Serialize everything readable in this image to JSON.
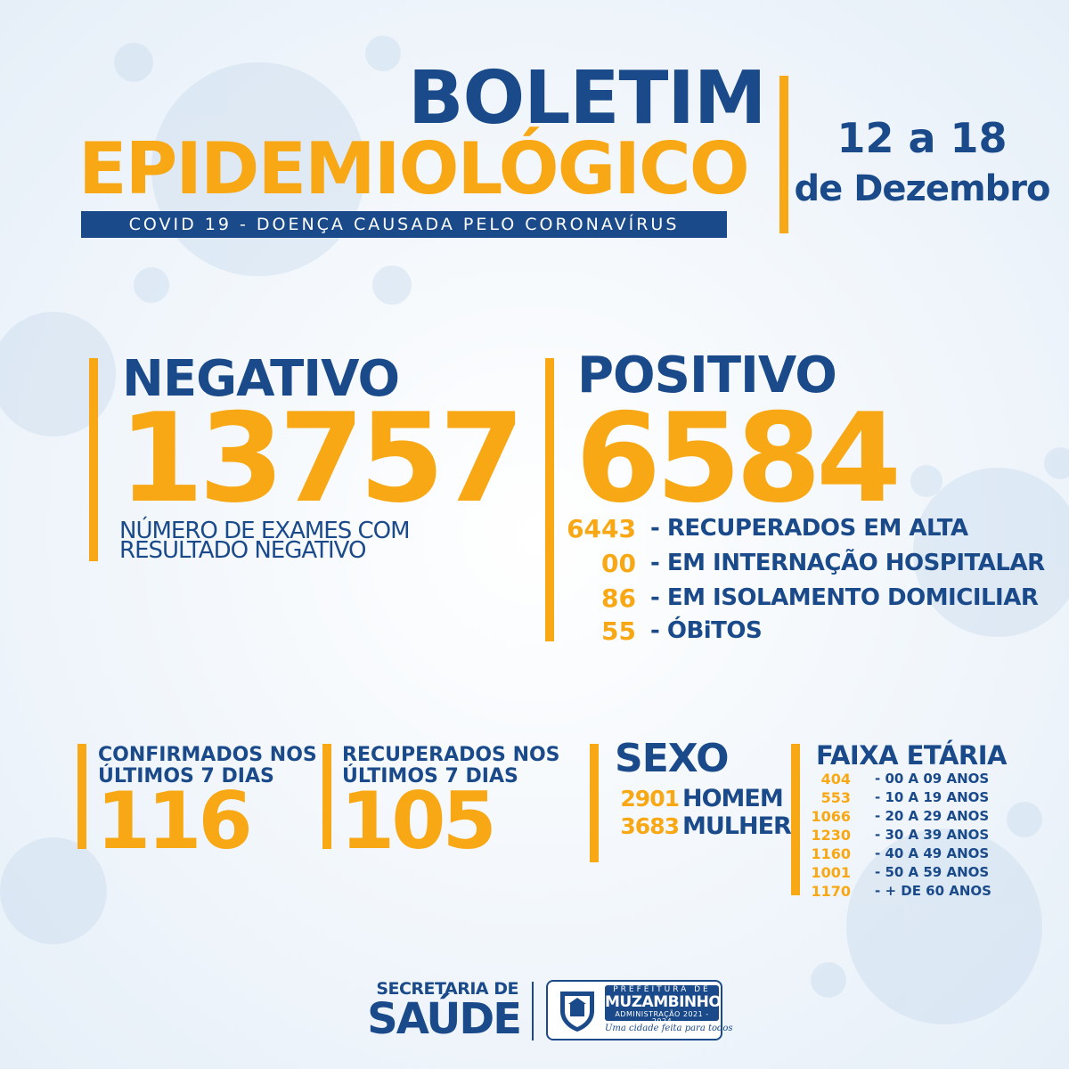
{
  "header": {
    "title_line1": "BOLETIM",
    "title_line2": "EPIDEMIOLÓGICO",
    "subtitle": "COVID 19 - DOENÇA CAUSADA PELO CORONAVÍRUS",
    "date_line1": "12 a 18",
    "date_line2": "de Dezembro"
  },
  "negative": {
    "label": "NEGATIVO",
    "value": "13757",
    "desc_line1": "NÚMERO DE EXAMES COM",
    "desc_line2": "RESULTADO NEGATIVO"
  },
  "positive": {
    "label": "POSITIVO",
    "value": "6584",
    "breakdown": [
      {
        "value": "6443",
        "label": "- RECUPERADOS EM ALTA"
      },
      {
        "value": "00",
        "label": "- EM INTERNAÇÃO HOSPITALAR"
      },
      {
        "value": "86",
        "label": "- EM ISOLAMENTO DOMICILIAR"
      },
      {
        "value": "55",
        "label": "- ÓBiTOS"
      }
    ]
  },
  "confirmed7": {
    "line1": "CONFIRMADOS NOS",
    "line2": "ÚLTIMOS 7 DIAS",
    "value": "116"
  },
  "recovered7": {
    "line1": "RECUPERADOS NOS",
    "line2": "ÚLTIMOS 7 DIAS",
    "value": "105"
  },
  "sex": {
    "title": "SEXO",
    "rows": [
      {
        "value": "2901",
        "label": "HOMEM"
      },
      {
        "value": "3683",
        "label": "MULHER"
      }
    ]
  },
  "age": {
    "title": "FAIXA ETÁRIA",
    "rows": [
      {
        "value": "404",
        "label": "- 00 A 09 ANOS"
      },
      {
        "value": "553",
        "label": "- 10 A 19 ANOS"
      },
      {
        "value": "1066",
        "label": "- 20 A 29 ANOS"
      },
      {
        "value": "1230",
        "label": "- 30 A 39 ANOS"
      },
      {
        "value": "1160",
        "label": "- 40 A 49 ANOS"
      },
      {
        "value": "1001",
        "label": "- 50 A 59 ANOS"
      },
      {
        "value": "1170",
        "label": "- + DE 60 ANOS"
      }
    ]
  },
  "footer": {
    "sec_line1": "SECRETARIA DE",
    "sec_line2": "SAÚDE",
    "pref_small": "PREFEITURA DE",
    "pref_name": "MUZAMBINHO",
    "pref_admin": "ADMINISTRAÇÃO 2021 - 2024",
    "slogan": "Uma cidade feita para todos"
  },
  "colors": {
    "blue": "#1a4a8a",
    "orange": "#f8a814",
    "background": "#eef4fa"
  }
}
